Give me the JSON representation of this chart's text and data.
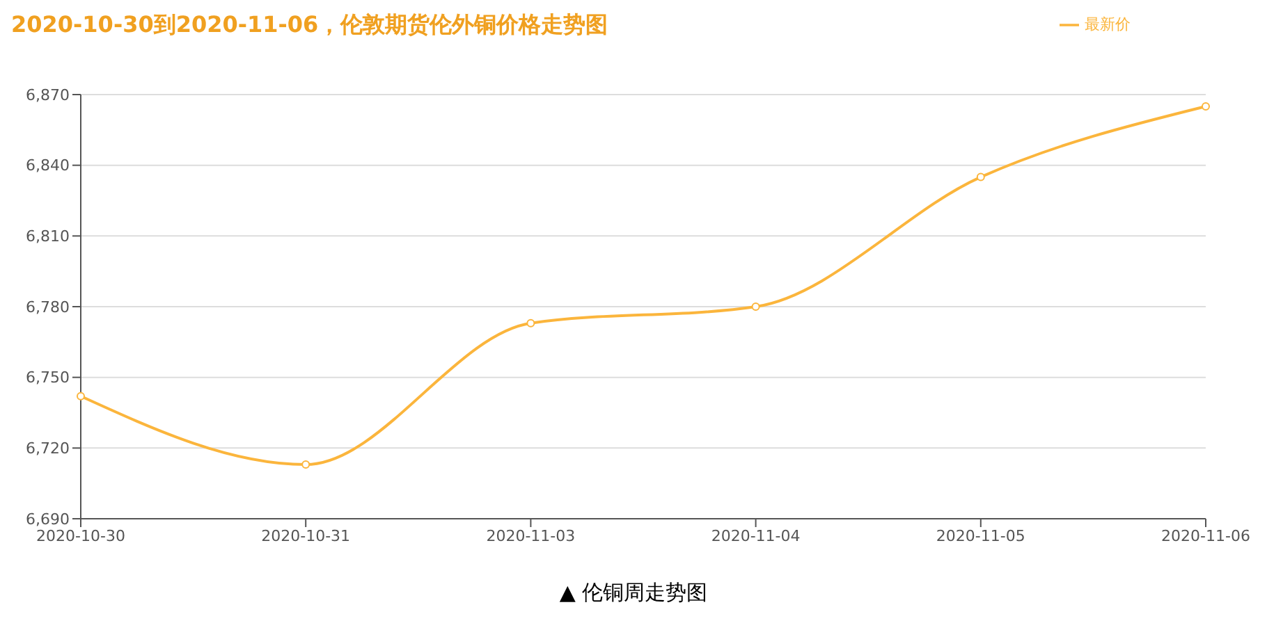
{
  "chart_data": {
    "type": "line",
    "title": "2020-10-30到2020-11-06，伦敦期货伦外铜价格走势图",
    "categories": [
      "2020-10-30",
      "2020-10-31",
      "2020-11-03",
      "2020-11-04",
      "2020-11-05",
      "2020-11-06"
    ],
    "series": [
      {
        "name": "最新价",
        "color": "#fbb53c",
        "values": [
          6742,
          6713,
          6773,
          6780,
          6835,
          6865
        ]
      }
    ],
    "ylim": [
      6690,
      6870
    ],
    "yticks": [
      {
        "value": 6690,
        "label": "6,690"
      },
      {
        "value": 6720,
        "label": "6,720"
      },
      {
        "value": 6750,
        "label": "6,750"
      },
      {
        "value": 6780,
        "label": "6,780"
      },
      {
        "value": 6810,
        "label": "6,810"
      },
      {
        "value": 6840,
        "label": "6,840"
      },
      {
        "value": 6870,
        "label": "6,870"
      }
    ],
    "grid": "y",
    "legend": "top right",
    "marker": "circle",
    "line_style": "solid",
    "annotations": [
      "▲ 伦铜周走势图"
    ]
  }
}
